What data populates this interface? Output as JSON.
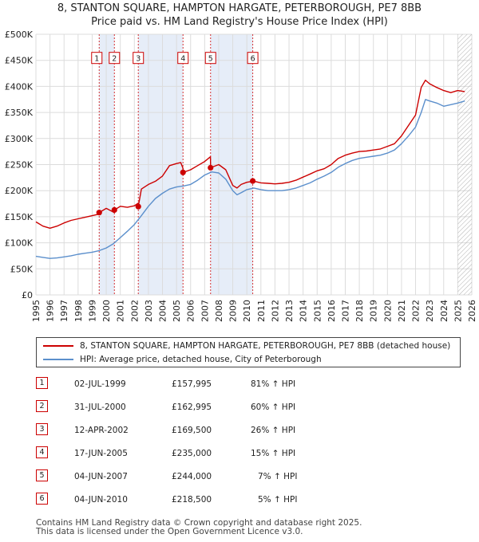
{
  "title_line1": "8, STANTON SQUARE, HAMPTON HARGATE, PETERBOROUGH, PE7 8BB",
  "title_line2": "Price paid vs. HM Land Registry's House Price Index (HPI)",
  "colors": {
    "property": "#cc0000",
    "hpi": "#5b8fcc",
    "shade": "#e6edf8",
    "sale_line": "#cc0000"
  },
  "chart_data": {
    "type": "line",
    "title": "Price paid vs. HM Land Registry's House Price Index (HPI)",
    "xlabel": "",
    "ylabel": "",
    "xlim": [
      1995,
      2026
    ],
    "ylim": [
      0,
      500000
    ],
    "y_ticks": [
      0,
      50000,
      100000,
      150000,
      200000,
      250000,
      300000,
      350000,
      400000,
      450000,
      500000
    ],
    "y_tick_labels": [
      "£0",
      "£50K",
      "£100K",
      "£150K",
      "£200K",
      "£250K",
      "£300K",
      "£350K",
      "£400K",
      "£450K",
      "£500K"
    ],
    "x_ticks": [
      1995,
      1996,
      1997,
      1998,
      1999,
      2000,
      2001,
      2002,
      2003,
      2004,
      2005,
      2006,
      2007,
      2008,
      2009,
      2010,
      2011,
      2012,
      2013,
      2014,
      2015,
      2016,
      2017,
      2018,
      2019,
      2020,
      2021,
      2022,
      2023,
      2024,
      2025,
      2026
    ],
    "grid": true,
    "shaded_periods": [
      [
        1999.5,
        2000.58
      ],
      [
        2002.28,
        2005.46
      ],
      [
        2007.42,
        2010.42
      ]
    ],
    "hatched_after": 2025.0,
    "series": [
      {
        "name": "8, STANTON SQUARE, HAMPTON HARGATE, PETERBOROUGH, PE7 8BB (detached house)",
        "color": "#cc0000",
        "x": [
          1995.0,
          1995.5,
          1996.0,
          1996.5,
          1997.0,
          1997.5,
          1998.0,
          1998.5,
          1999.0,
          1999.5,
          1999.51,
          2000.0,
          2000.58,
          2000.59,
          2001.0,
          2001.5,
          2002.0,
          2002.27,
          2002.28,
          2002.5,
          2003.0,
          2003.5,
          2004.0,
          2004.5,
          2005.0,
          2005.3,
          2005.46,
          2005.47,
          2006.0,
          2006.5,
          2007.0,
          2007.41,
          2007.42,
          2008.0,
          2008.5,
          2009.0,
          2009.3,
          2009.6,
          2010.0,
          2010.42,
          2010.43,
          2011.0,
          2011.5,
          2012.0,
          2012.5,
          2013.0,
          2013.5,
          2014.0,
          2014.5,
          2015.0,
          2015.5,
          2016.0,
          2016.5,
          2017.0,
          2017.5,
          2018.0,
          2018.5,
          2019.0,
          2019.5,
          2020.0,
          2020.5,
          2021.0,
          2021.5,
          2022.0,
          2022.4,
          2022.7,
          2023.0,
          2023.5,
          2024.0,
          2024.5,
          2025.0,
          2025.5
        ],
        "y": [
          140000,
          132000,
          128000,
          132000,
          138000,
          143000,
          146000,
          149000,
          152000,
          155000,
          157995,
          166000,
          158000,
          162995,
          170000,
          168000,
          171000,
          176000,
          169500,
          203000,
          212000,
          218000,
          228000,
          248000,
          252000,
          254000,
          243000,
          235000,
          240000,
          248000,
          256000,
          265000,
          244000,
          250000,
          240000,
          210000,
          205000,
          212000,
          216000,
          218000,
          218500,
          215000,
          214000,
          213000,
          214000,
          216000,
          220000,
          226000,
          232000,
          238000,
          242000,
          250000,
          262000,
          268000,
          272000,
          275000,
          276000,
          278000,
          280000,
          285000,
          290000,
          305000,
          325000,
          345000,
          398000,
          412000,
          405000,
          398000,
          392000,
          388000,
          392000,
          390000
        ]
      },
      {
        "name": "HPI: Average price, detached house, City of Peterborough",
        "color": "#5b8fcc",
        "x": [
          1995.0,
          1995.5,
          1996.0,
          1996.5,
          1997.0,
          1997.5,
          1998.0,
          1998.5,
          1999.0,
          1999.5,
          2000.0,
          2000.5,
          2001.0,
          2001.5,
          2002.0,
          2002.5,
          2003.0,
          2003.5,
          2004.0,
          2004.5,
          2005.0,
          2005.5,
          2006.0,
          2006.5,
          2007.0,
          2007.5,
          2008.0,
          2008.5,
          2009.0,
          2009.3,
          2009.6,
          2010.0,
          2010.5,
          2011.0,
          2011.5,
          2012.0,
          2012.5,
          2013.0,
          2013.5,
          2014.0,
          2014.5,
          2015.0,
          2015.5,
          2016.0,
          2016.5,
          2017.0,
          2017.5,
          2018.0,
          2018.5,
          2019.0,
          2019.5,
          2020.0,
          2020.5,
          2021.0,
          2021.5,
          2022.0,
          2022.4,
          2022.7,
          2023.0,
          2023.5,
          2024.0,
          2024.5,
          2025.0,
          2025.5
        ],
        "y": [
          74000,
          72000,
          70000,
          71000,
          73000,
          75000,
          78000,
          80000,
          82000,
          85000,
          90000,
          98000,
          110000,
          122000,
          135000,
          152000,
          170000,
          185000,
          195000,
          203000,
          207000,
          209000,
          212000,
          220000,
          230000,
          236000,
          234000,
          222000,
          200000,
          192000,
          196000,
          202000,
          205000,
          202000,
          200000,
          200000,
          200000,
          202000,
          205000,
          210000,
          215000,
          222000,
          228000,
          235000,
          245000,
          252000,
          258000,
          262000,
          264000,
          266000,
          268000,
          272000,
          278000,
          290000,
          305000,
          322000,
          350000,
          375000,
          372000,
          368000,
          362000,
          365000,
          368000,
          372000
        ]
      }
    ],
    "sale_markers": [
      {
        "label": "1",
        "x": 1999.5,
        "y": 157995
      },
      {
        "label": "2",
        "x": 2000.58,
        "y": 162995
      },
      {
        "label": "3",
        "x": 2002.28,
        "y": 169500
      },
      {
        "label": "4",
        "x": 2005.46,
        "y": 235000
      },
      {
        "label": "5",
        "x": 2007.42,
        "y": 244000
      },
      {
        "label": "6",
        "x": 2010.42,
        "y": 218500
      }
    ]
  },
  "legend": {
    "property": "8, STANTON SQUARE, HAMPTON HARGATE, PETERBOROUGH, PE7 8BB (detached house)",
    "hpi": "HPI: Average price, detached house, City of Peterborough"
  },
  "sales": [
    {
      "num": "1",
      "date": "02-JUL-1999",
      "price": "£157,995",
      "hpi": "81% ↑ HPI"
    },
    {
      "num": "2",
      "date": "31-JUL-2000",
      "price": "£162,995",
      "hpi": "60% ↑ HPI"
    },
    {
      "num": "3",
      "date": "12-APR-2002",
      "price": "£169,500",
      "hpi": "26% ↑ HPI"
    },
    {
      "num": "4",
      "date": "17-JUN-2005",
      "price": "£235,000",
      "hpi": "15% ↑ HPI"
    },
    {
      "num": "5",
      "date": "04-JUN-2007",
      "price": "£244,000",
      "hpi": "7% ↑ HPI"
    },
    {
      "num": "6",
      "date": "04-JUN-2010",
      "price": "£218,500",
      "hpi": "5% ↑ HPI"
    }
  ],
  "footer_line1": "Contains HM Land Registry data © Crown copyright and database right 2025.",
  "footer_line2": "This data is licensed under the Open Government Licence v3.0."
}
